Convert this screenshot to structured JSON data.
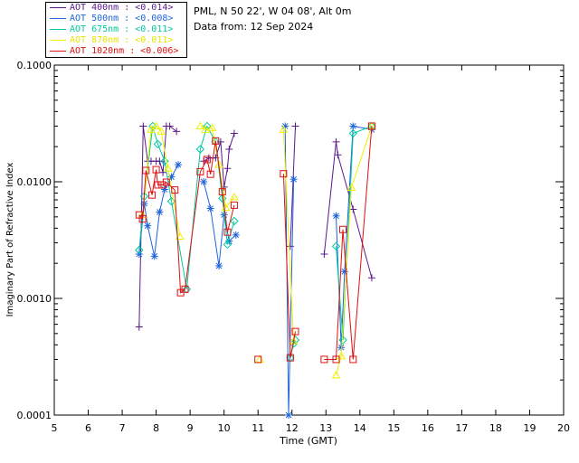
{
  "station": {
    "location": "PML, N 50 22', W 04 08', Alt 0m",
    "date_text": "Data from: 12 Sep 2024"
  },
  "chart_data": {
    "type": "scatter",
    "title": "",
    "xlabel": "Time (GMT)",
    "ylabel": "Imaginary Part of Refractive Index",
    "xlim": [
      5,
      20
    ],
    "ylim": [
      0.0001,
      0.1
    ],
    "yscale": "log",
    "x_ticks": [
      "5",
      "6",
      "7",
      "8",
      "9",
      "10",
      "11",
      "12",
      "13",
      "14",
      "15",
      "16",
      "17",
      "18",
      "19",
      "20"
    ],
    "y_ticks": [
      "0.1000",
      "0.0100",
      "0.0010",
      "0.0001"
    ],
    "grid": false,
    "legend_position": "top-left, outside plot",
    "series": [
      {
        "name": "AOT  400nm : <0.014>",
        "color": "#5a1a8c",
        "marker": "plus",
        "x": [
          7.5,
          7.62,
          7.75,
          7.85,
          8.0,
          8.1,
          8.2,
          8.3,
          8.4,
          8.6,
          9.4,
          9.55,
          9.75,
          9.9,
          10.0,
          10.1,
          10.15,
          10.3,
          11.95,
          12.1,
          12.95,
          13.3,
          13.35,
          13.8,
          14.35
        ],
        "y": [
          0.00057,
          0.03,
          0.015,
          0.015,
          0.015,
          0.015,
          0.012,
          0.03,
          0.03,
          0.027,
          0.015,
          0.016,
          0.016,
          0.022,
          0.009,
          0.013,
          0.019,
          0.026,
          0.0028,
          0.03,
          0.0024,
          0.022,
          0.017,
          0.0058,
          0.0015
        ]
      },
      {
        "name": "AOT  500nm : <0.008>",
        "color": "#1e64dc",
        "marker": "asterisk",
        "x": [
          7.5,
          7.65,
          7.75,
          7.95,
          8.1,
          8.25,
          8.45,
          8.65,
          9.4,
          9.6,
          9.85,
          10.0,
          10.15,
          10.35,
          11.8,
          11.9,
          12.05,
          13.3,
          13.45,
          13.55,
          13.8,
          14.35
        ],
        "y": [
          0.0024,
          0.0065,
          0.0042,
          0.0023,
          0.0055,
          0.0086,
          0.011,
          0.014,
          0.01,
          0.0059,
          0.0019,
          0.0052,
          0.0031,
          0.0035,
          0.03,
          0.0001,
          0.0105,
          0.0051,
          0.00038,
          0.0017,
          0.03,
          0.028
        ]
      },
      {
        "name": "AOT  675nm : <0.011>",
        "color": "#00c8a0",
        "marker": "diamond",
        "x": [
          7.5,
          7.65,
          7.9,
          8.05,
          8.25,
          8.45,
          8.9,
          9.3,
          9.5,
          9.75,
          9.95,
          10.1,
          10.3,
          11.95,
          12.05,
          12.1,
          13.3,
          13.5,
          13.8,
          14.35
        ],
        "y": [
          0.0026,
          0.0075,
          0.03,
          0.021,
          0.015,
          0.0068,
          0.0012,
          0.019,
          0.03,
          0.022,
          0.0072,
          0.0029,
          0.0046,
          0.00031,
          0.00041,
          0.00044,
          0.0028,
          0.00044,
          0.026,
          0.03
        ]
      },
      {
        "name": "AOT  870nm : <0.011>",
        "color": "#f0f000",
        "marker": "triangle",
        "x": [
          7.6,
          7.85,
          8.0,
          8.15,
          8.35,
          8.7,
          9.3,
          9.45,
          9.65,
          9.85,
          10.05,
          10.3,
          11.05,
          11.75,
          12.05,
          13.3,
          13.45,
          13.75,
          14.35
        ],
        "y": [
          0.0052,
          0.028,
          0.03,
          0.027,
          0.013,
          0.0034,
          0.03,
          0.028,
          0.029,
          0.014,
          0.006,
          0.0074,
          0.0003,
          0.028,
          0.00043,
          0.00022,
          0.00032,
          0.0089,
          0.03
        ]
      },
      {
        "name": "AOT 1020nm : <0.006>",
        "color": "#e01010",
        "marker": "square",
        "x": [
          7.5,
          7.6,
          7.7,
          7.88,
          8.0,
          8.05,
          8.18,
          8.3,
          8.55,
          8.72,
          8.85,
          9.3,
          9.5,
          9.6,
          9.75,
          9.95,
          10.1,
          10.3,
          11.0,
          11.75,
          11.95,
          12.1,
          12.95,
          13.3,
          13.5,
          13.8,
          14.35
        ],
        "y": [
          0.0052,
          0.0048,
          0.0125,
          0.0077,
          0.0127,
          0.0094,
          0.0094,
          0.0099,
          0.0085,
          0.00112,
          0.0012,
          0.0122,
          0.0155,
          0.0116,
          0.0224,
          0.0082,
          0.0037,
          0.0063,
          0.0003,
          0.0117,
          0.00031,
          0.00052,
          0.0003,
          0.0003,
          0.0039,
          0.0003,
          0.03
        ]
      }
    ]
  }
}
